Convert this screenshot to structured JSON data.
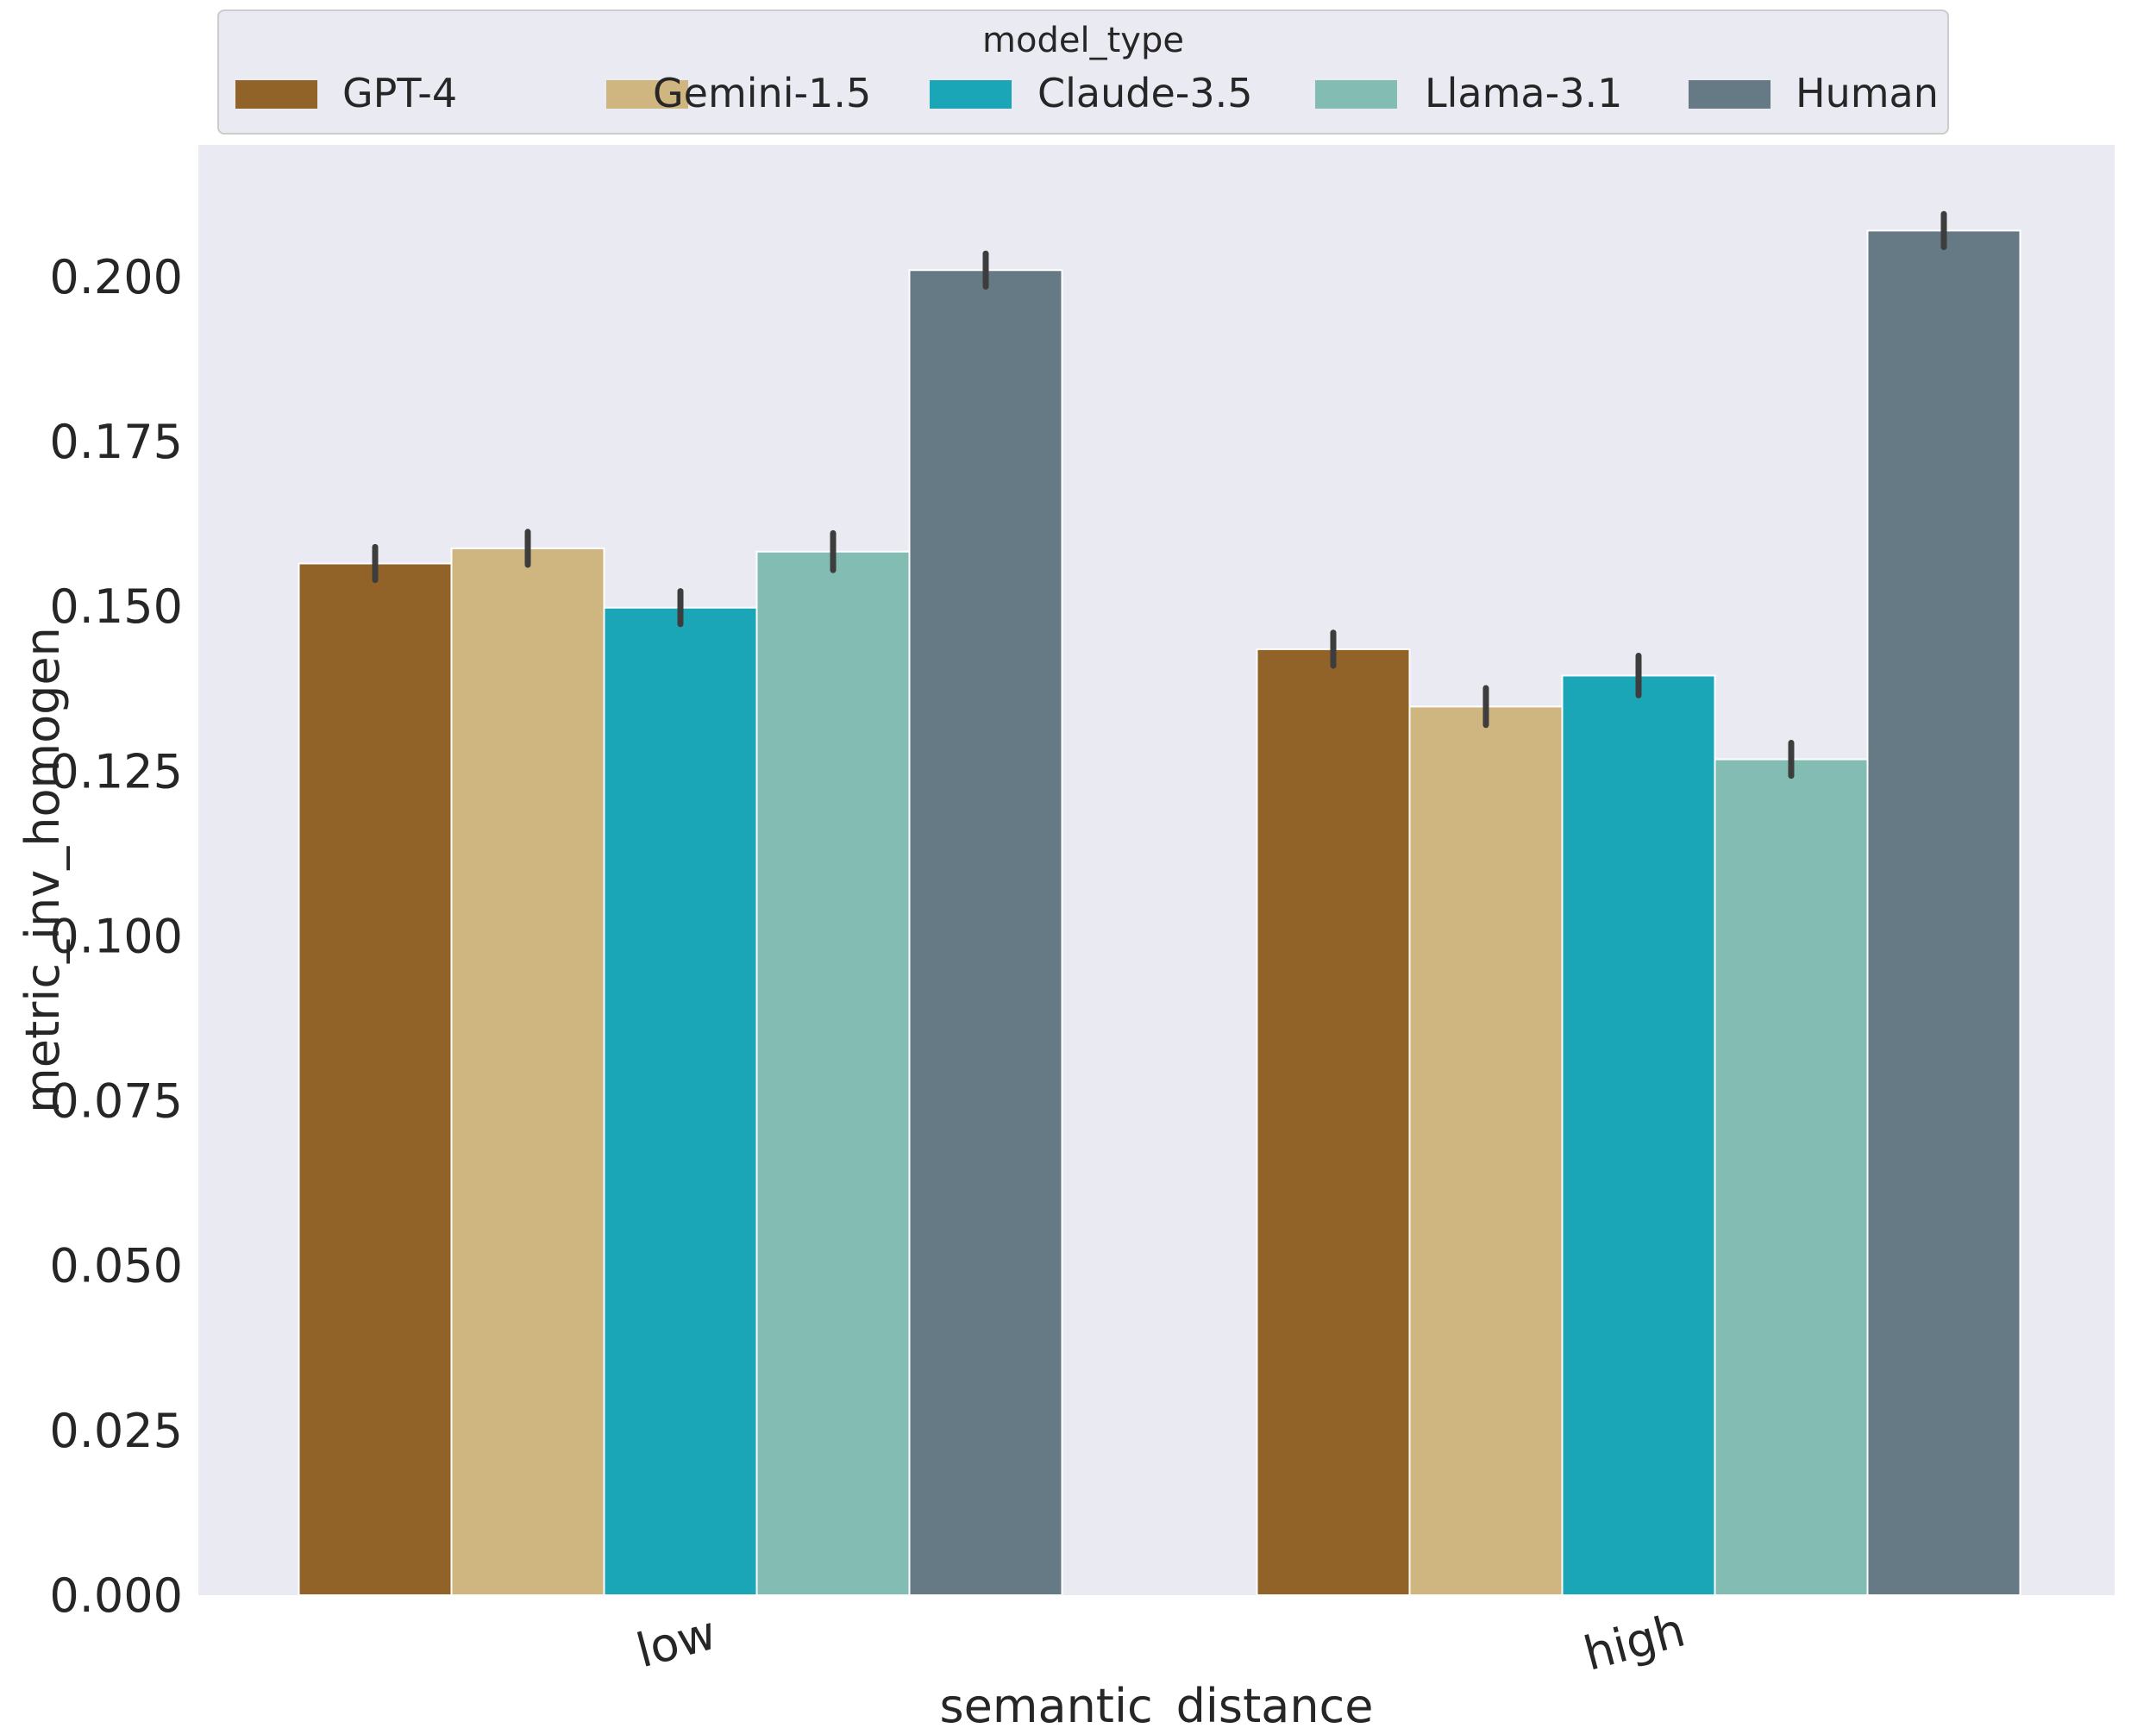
{
  "chart_data": {
    "type": "bar",
    "xlabel": "semantic_distance",
    "ylabel": "metric_inv_homogen",
    "categories": [
      "low",
      "high"
    ],
    "series": [
      {
        "name": "GPT-4",
        "values": [
          0.1565,
          0.1435
        ],
        "err": [
          0.0025,
          0.0025
        ],
        "color": "#916328"
      },
      {
        "name": "Gemini-1.5",
        "values": [
          0.1588,
          0.1348
        ],
        "err": [
          0.0025,
          0.0028
        ],
        "color": "#cfb57f"
      },
      {
        "name": "Claude-3.5",
        "values": [
          0.1498,
          0.1395
        ],
        "err": [
          0.0025,
          0.003
        ],
        "color": "#1ba6b8"
      },
      {
        "name": "Llama-3.1",
        "values": [
          0.1583,
          0.1268
        ],
        "err": [
          0.0028,
          0.0025
        ],
        "color": "#82bcb3"
      },
      {
        "name": "Human",
        "values": [
          0.201,
          0.207
        ],
        "err": [
          0.0025,
          0.0025
        ],
        "color": "#657a84"
      }
    ],
    "ylim": [
      0,
      0.22
    ],
    "yticks": [
      "0.000",
      "0.025",
      "0.050",
      "0.075",
      "0.100",
      "0.125",
      "0.150",
      "0.175",
      "0.200"
    ],
    "legend": {
      "title": "model_type",
      "placement": "top-center, outside plot, 5 columns"
    },
    "grid": false,
    "colors": {
      "plot_bg": "#eaeaf2",
      "legend_bg": "#eaeaf2",
      "errorbar": "#3d3d3d",
      "bar_edge": "#ffffff"
    }
  }
}
